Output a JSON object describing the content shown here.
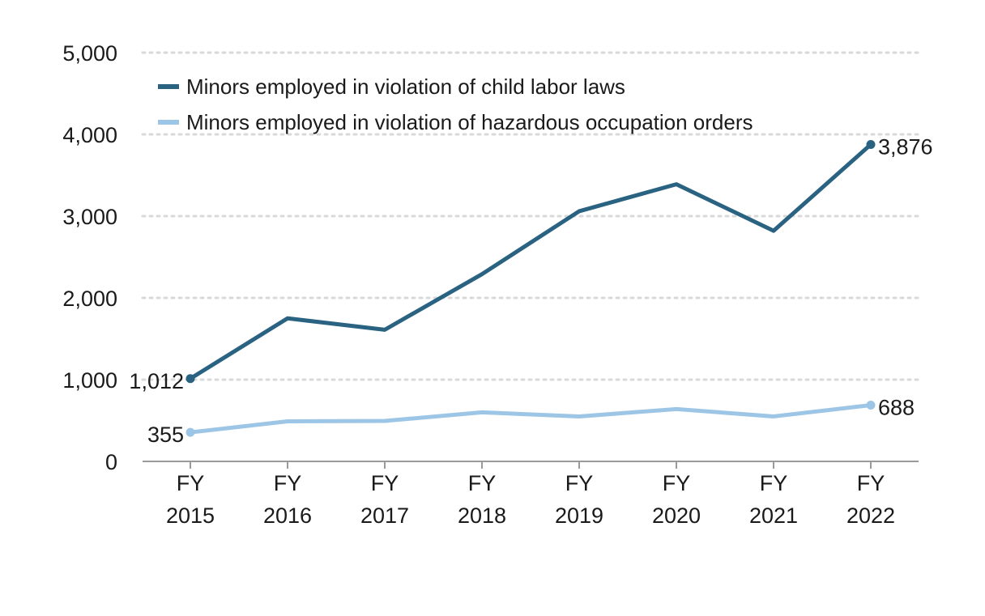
{
  "chart_data": {
    "type": "line",
    "title": "",
    "xlabel": "",
    "ylabel": "",
    "ylim": [
      0,
      5000
    ],
    "yticks": [
      0,
      1000,
      2000,
      3000,
      4000,
      5000
    ],
    "ytick_labels": [
      "0",
      "1,000",
      "2,000",
      "3,000",
      "4,000",
      "5,000"
    ],
    "categories": [
      [
        "FY",
        "2015"
      ],
      [
        "FY",
        "2016"
      ],
      [
        "FY",
        "2017"
      ],
      [
        "FY",
        "2018"
      ],
      [
        "FY",
        "2019"
      ],
      [
        "FY",
        "2020"
      ],
      [
        "FY",
        "2021"
      ],
      [
        "FY",
        "2022"
      ]
    ],
    "grid": true,
    "legend_position": "top-left",
    "series": [
      {
        "name": "Minors employed in violation of child labor laws",
        "color": "#2a6282",
        "values": [
          1012,
          1750,
          1610,
          2290,
          3060,
          3390,
          2820,
          3876
        ],
        "labels": {
          "first": "1,012",
          "last": "3,876"
        }
      },
      {
        "name": "Minors employed in violation of hazardous occupation orders",
        "color": "#9dc6e6",
        "values": [
          355,
          490,
          495,
          600,
          550,
          640,
          550,
          688
        ],
        "labels": {
          "first": "355",
          "last": "688"
        }
      }
    ]
  }
}
